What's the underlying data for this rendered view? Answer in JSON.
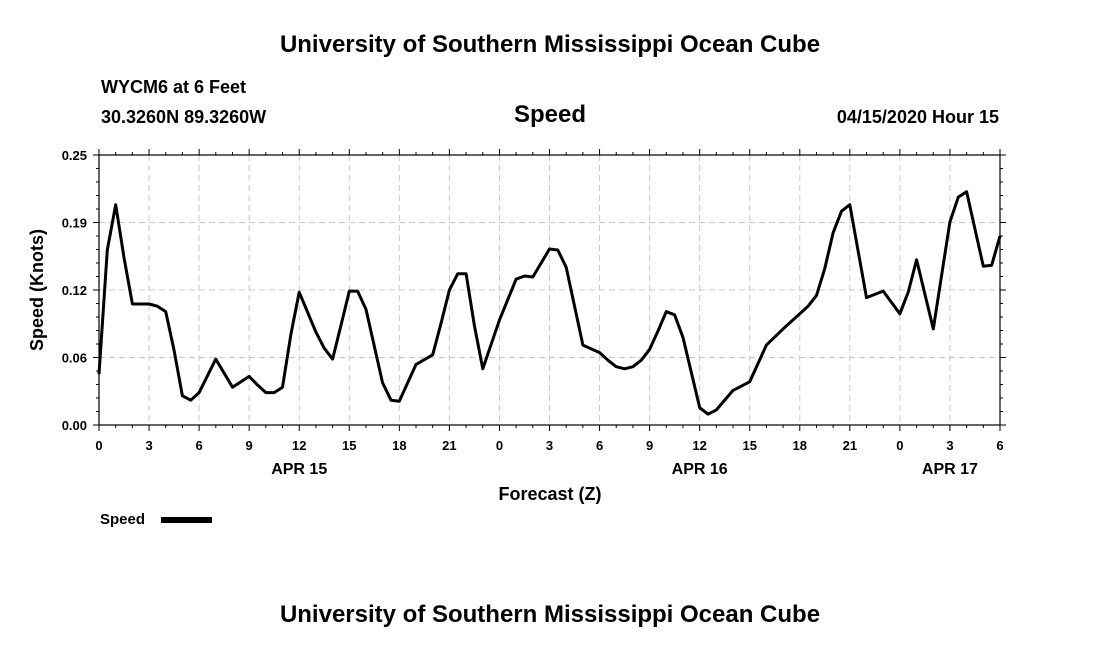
{
  "header": {
    "title": "University of Southern Mississippi Ocean Cube",
    "station": "WYCM6 at 6 Feet",
    "coords": "30.3260N 89.3260W",
    "datetime": "04/15/2020 Hour 15"
  },
  "footer": {
    "title": "University of Southern Mississippi Ocean Cube"
  },
  "chart_data": {
    "type": "line",
    "title": "Speed",
    "xlabel": "Forecast (Z)",
    "ylabel": "Speed (Knots)",
    "x_unit": "forecast hour",
    "xlim": [
      0,
      54
    ],
    "ylim": [
      0,
      0.25
    ],
    "yticks": [
      "0.00",
      "0.06",
      "0.12",
      "0.19",
      "0.25"
    ],
    "xticks": [
      {
        "x": 0,
        "label": "0"
      },
      {
        "x": 3,
        "label": "3"
      },
      {
        "x": 6,
        "label": "6"
      },
      {
        "x": 9,
        "label": "9"
      },
      {
        "x": 12,
        "label": "12"
      },
      {
        "x": 15,
        "label": "15"
      },
      {
        "x": 18,
        "label": "18"
      },
      {
        "x": 21,
        "label": "21"
      },
      {
        "x": 24,
        "label": "0"
      },
      {
        "x": 27,
        "label": "3"
      },
      {
        "x": 30,
        "label": "6"
      },
      {
        "x": 33,
        "label": "9"
      },
      {
        "x": 36,
        "label": "12"
      },
      {
        "x": 39,
        "label": "15"
      },
      {
        "x": 42,
        "label": "18"
      },
      {
        "x": 45,
        "label": "21"
      },
      {
        "x": 48,
        "label": "0"
      },
      {
        "x": 51,
        "label": "3"
      },
      {
        "x": 54,
        "label": "6"
      }
    ],
    "date_labels": [
      {
        "x": 12,
        "label": "APR 15"
      },
      {
        "x": 36,
        "label": "APR 16"
      },
      {
        "x": 51,
        "label": "APR 17"
      }
    ],
    "grid": true,
    "legend": "bottom-left",
    "series": [
      {
        "name": "Speed",
        "color": "#000000",
        "points": [
          [
            0,
            0.047
          ],
          [
            0.5,
            0.162
          ],
          [
            1,
            0.204
          ],
          [
            1.5,
            0.155
          ],
          [
            2,
            0.112
          ],
          [
            3,
            0.112
          ],
          [
            3.5,
            0.11
          ],
          [
            4,
            0.105
          ],
          [
            4.5,
            0.069
          ],
          [
            5,
            0.027
          ],
          [
            5.5,
            0.023
          ],
          [
            6,
            0.03
          ],
          [
            7,
            0.061
          ],
          [
            8,
            0.035
          ],
          [
            9,
            0.045
          ],
          [
            9.5,
            0.037
          ],
          [
            10,
            0.03
          ],
          [
            10.5,
            0.03
          ],
          [
            11,
            0.035
          ],
          [
            11.5,
            0.084
          ],
          [
            12,
            0.123
          ],
          [
            13,
            0.086
          ],
          [
            13.5,
            0.071
          ],
          [
            14,
            0.061
          ],
          [
            14.5,
            0.092
          ],
          [
            15,
            0.124
          ],
          [
            15.5,
            0.124
          ],
          [
            16,
            0.107
          ],
          [
            17,
            0.039
          ],
          [
            17.5,
            0.023
          ],
          [
            18,
            0.022
          ],
          [
            19,
            0.056
          ],
          [
            20,
            0.065
          ],
          [
            20.5,
            0.094
          ],
          [
            21,
            0.125
          ],
          [
            21.5,
            0.14
          ],
          [
            22,
            0.14
          ],
          [
            22.5,
            0.092
          ],
          [
            23,
            0.052
          ],
          [
            24,
            0.097
          ],
          [
            25,
            0.135
          ],
          [
            25.5,
            0.138
          ],
          [
            26,
            0.137
          ],
          [
            27,
            0.163
          ],
          [
            27.5,
            0.162
          ],
          [
            28,
            0.146
          ],
          [
            29,
            0.074
          ],
          [
            30,
            0.067
          ],
          [
            30.5,
            0.06
          ],
          [
            31,
            0.054
          ],
          [
            31.5,
            0.052
          ],
          [
            32,
            0.054
          ],
          [
            32.5,
            0.06
          ],
          [
            33,
            0.07
          ],
          [
            33.5,
            0.087
          ],
          [
            34,
            0.105
          ],
          [
            34.5,
            0.102
          ],
          [
            35,
            0.081
          ],
          [
            36,
            0.016
          ],
          [
            36.5,
            0.01
          ],
          [
            37,
            0.014
          ],
          [
            38,
            0.032
          ],
          [
            39,
            0.04
          ],
          [
            40,
            0.074
          ],
          [
            41,
            0.089
          ],
          [
            42,
            0.103
          ],
          [
            42.5,
            0.11
          ],
          [
            43,
            0.12
          ],
          [
            43.5,
            0.145
          ],
          [
            44,
            0.178
          ],
          [
            44.5,
            0.198
          ],
          [
            45,
            0.204
          ],
          [
            46,
            0.118
          ],
          [
            47,
            0.124
          ],
          [
            48,
            0.103
          ],
          [
            48.5,
            0.123
          ],
          [
            49,
            0.153
          ],
          [
            50,
            0.089
          ],
          [
            51,
            0.188
          ],
          [
            51.5,
            0.211
          ],
          [
            52,
            0.216
          ],
          [
            53,
            0.147
          ],
          [
            53.5,
            0.148
          ],
          [
            54,
            0.175
          ]
        ]
      }
    ]
  }
}
